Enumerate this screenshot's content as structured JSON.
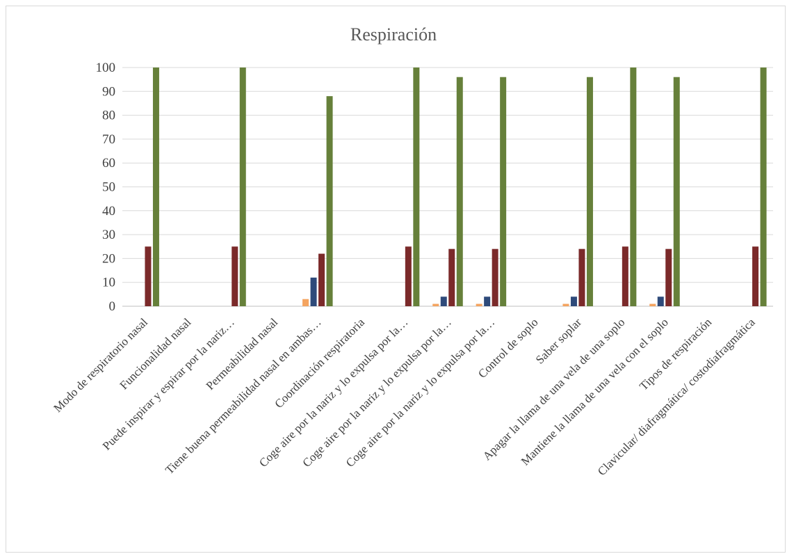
{
  "chart_data": {
    "type": "bar",
    "title": "Respiración",
    "xlabel": "",
    "ylabel": "",
    "ylim": [
      0,
      100
    ],
    "yticks": [
      0,
      10,
      20,
      30,
      40,
      50,
      60,
      70,
      80,
      90,
      100
    ],
    "grid": true,
    "legend": "none",
    "categories": [
      "Modo de respiratorio nasal",
      "Funcionalidad  nasal",
      "Puede inspirar y espirar por la nariz…",
      "Permeabilidad  nasal",
      "Tiene buena permeabilidad  nasal en ambas…",
      "Coordinación respiratoria",
      "Coge aire por la nariz y lo expulsa por la…",
      "Coge aire por la nariz y lo expulsa por la…",
      "Coge aire por la nariz y lo expulsa por la…",
      "Control de soplo",
      "Saber soplar",
      "Apagar la llama de una vela de una soplo",
      "Mantiene la llama de una vela con el soplo",
      "Tipos de respiración",
      "Clavicular/  diafragmática/ costodiafragmática"
    ],
    "series": [
      {
        "color": "#f4a460",
        "values": [
          0,
          0,
          0,
          0,
          3,
          0,
          0,
          1,
          1,
          0,
          1,
          0,
          1,
          0,
          0
        ]
      },
      {
        "color": "#2e4a7a",
        "values": [
          0,
          0,
          0,
          0,
          12,
          0,
          0,
          4,
          4,
          0,
          4,
          0,
          4,
          0,
          0
        ]
      },
      {
        "color": "#7b2a2a",
        "values": [
          25,
          0,
          25,
          0,
          22,
          0,
          25,
          24,
          24,
          0,
          24,
          25,
          24,
          0,
          25
        ]
      },
      {
        "color": "#66803a",
        "values": [
          100,
          0,
          100,
          0,
          88,
          0,
          100,
          96,
          96,
          0,
          96,
          100,
          96,
          0,
          100
        ]
      }
    ]
  }
}
